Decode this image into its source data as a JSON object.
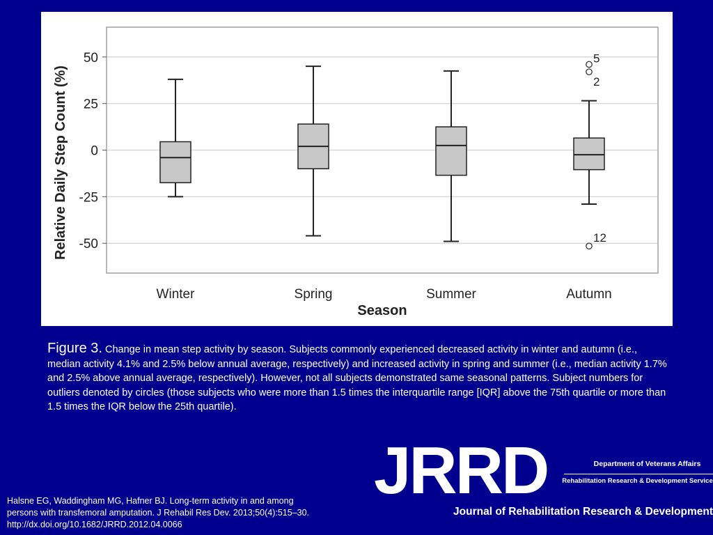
{
  "chart_data": {
    "type": "boxplot",
    "xlabel": "Season",
    "ylabel": "Relative Daily Step Count (%)",
    "ylim": [
      -66,
      66
    ],
    "yticks": [
      50,
      25,
      0,
      -25,
      -50
    ],
    "grid": true,
    "categories": [
      "Winter",
      "Spring",
      "Summer",
      "Autumn"
    ],
    "boxes": [
      {
        "category": "Winter",
        "whisker_low": -25,
        "q1": -17.5,
        "median": -4,
        "q3": 4.5,
        "whisker_high": 38,
        "outliers": []
      },
      {
        "category": "Spring",
        "whisker_low": -46,
        "q1": -10,
        "median": 2,
        "q3": 14,
        "whisker_high": 45,
        "outliers": []
      },
      {
        "category": "Summer",
        "whisker_low": -49,
        "q1": -13.5,
        "median": 2.5,
        "q3": 12.5,
        "whisker_high": 42.5,
        "outliers": []
      },
      {
        "category": "Autumn",
        "whisker_low": -29,
        "q1": -10.5,
        "median": -2.5,
        "q3": 6.5,
        "whisker_high": 26.5,
        "outliers": [
          {
            "value": 46,
            "label": "5"
          },
          {
            "value": 42,
            "label": "2"
          },
          {
            "value": -51.5,
            "label": "12"
          }
        ]
      }
    ]
  },
  "caption": {
    "label": "Figure 3.",
    "text": "Change in mean step activity by season. Subjects commonly experienced decreased activity in winter and autumn (i.e., median activity 4.1% and 2.5% below annual average, respectively) and increased activity in spring and summer (i.e., median activity 1.7% and 2.5% above annual average, respectively). However, not all subjects demonstrated same seasonal patterns. Subject numbers for outliers denoted by circles (those subjects who were more than 1.5 times the interquartile range [IQR] above the 75th quartile or more than 1.5 times the IQR below the 25th quartile)."
  },
  "citation": {
    "line1": "Halsne EG, Waddingham MG, Hafner BJ. Long-term activity in and among",
    "line2": "persons with transfemoral amputation. J Rehabil Res Dev. 2013;50(4):515–30.",
    "line3": "http://dx.doi.org/10.1682/JRRD.2012.04.0066"
  },
  "logo": {
    "mark": "JRRD",
    "department": "Department of Veterans Affairs",
    "service": "Rehabilitation Research & Development Service",
    "journal": "Journal of Rehabilitation Research & Development"
  },
  "colors": {
    "background": "#00008f",
    "box_fill": "#c8c8c8",
    "grid": "#d9d9d9"
  }
}
